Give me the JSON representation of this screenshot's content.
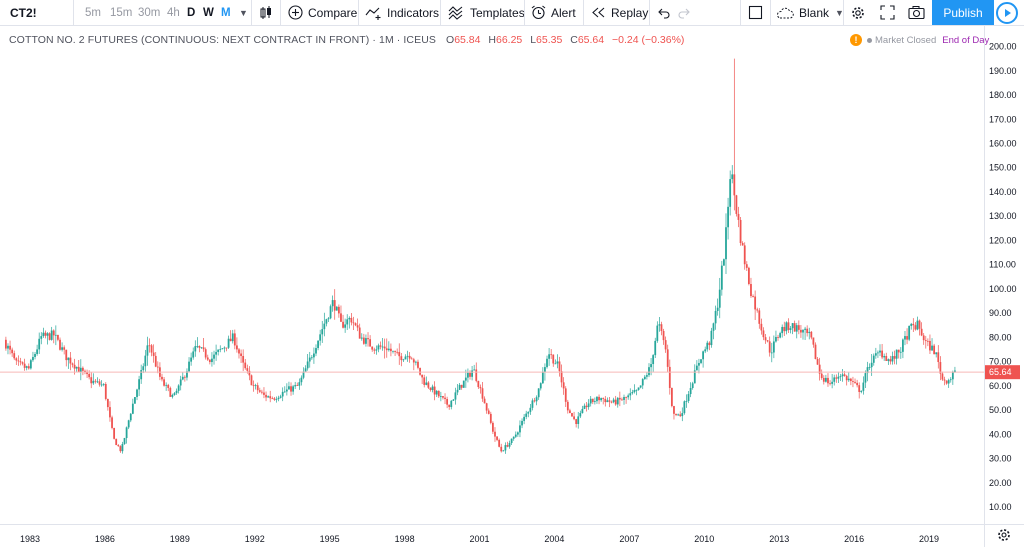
{
  "toolbar": {
    "symbol": "CT2!",
    "intervals": [
      "5m",
      "15m",
      "30m",
      "4h",
      "D",
      "W",
      "M"
    ],
    "active_intervals": [
      "D",
      "W"
    ],
    "selected_interval": "M",
    "compare_label": "Compare",
    "indicators_label": "Indicators",
    "templates_label": "Templates",
    "alert_label": "Alert",
    "replay_label": "Replay",
    "layout_label": "Blank",
    "publish_label": "Publish"
  },
  "legend": {
    "title": "COTTON NO. 2 FUTURES (CONTINUOUS: NEXT CONTRACT IN FRONT) · 1M · ICEUS",
    "open_label": "O",
    "open": "65.84",
    "high_label": "H",
    "high": "66.25",
    "low_label": "L",
    "low": "65.35",
    "close_label": "C",
    "close": "65.64",
    "change": "−0.24 (−0.36%)",
    "status_badge": "!",
    "market_status": "Market Closed",
    "session": "End of Day"
  },
  "colors": {
    "up": "#26a69a",
    "down": "#ef5350",
    "accent": "#2196f3",
    "last_price_line": "#f6b9b7",
    "grid": "#ffffff"
  },
  "chart_data": {
    "type": "candlestick",
    "title": "",
    "xlabel": "",
    "ylabel": "",
    "x_ticks": [
      "1983",
      "1986",
      "1989",
      "1992",
      "1995",
      "1998",
      "2001",
      "2004",
      "2007",
      "2010",
      "2013",
      "2016",
      "2019"
    ],
    "y_ticks": [
      "10.00",
      "20.00",
      "30.00",
      "40.00",
      "50.00",
      "60.00",
      "70.00",
      "80.00",
      "90.00",
      "100.00",
      "110.00",
      "120.00",
      "130.00",
      "140.00",
      "150.00",
      "160.00",
      "170.00",
      "180.00",
      "190.00",
      "200.00"
    ],
    "ylim": [
      3,
      206
    ],
    "xlim": [
      1981.8,
      2021.2
    ],
    "last_price": "65.64",
    "anchors": [
      [
        1982.0,
        79
      ],
      [
        1982.5,
        69
      ],
      [
        1983.0,
        67
      ],
      [
        1983.5,
        80
      ],
      [
        1984.0,
        81
      ],
      [
        1984.5,
        72
      ],
      [
        1985.0,
        67
      ],
      [
        1985.5,
        62
      ],
      [
        1986.0,
        60
      ],
      [
        1986.4,
        38
      ],
      [
        1986.7,
        33
      ],
      [
        1987.1,
        50
      ],
      [
        1987.5,
        65
      ],
      [
        1987.8,
        78
      ],
      [
        1988.3,
        62
      ],
      [
        1988.8,
        55
      ],
      [
        1989.3,
        66
      ],
      [
        1989.7,
        76
      ],
      [
        1990.3,
        71
      ],
      [
        1990.7,
        75
      ],
      [
        1991.2,
        80
      ],
      [
        1991.6,
        68
      ],
      [
        1992.0,
        60
      ],
      [
        1992.4,
        56
      ],
      [
        1992.8,
        55
      ],
      [
        1993.3,
        58
      ],
      [
        1993.8,
        60
      ],
      [
        1994.3,
        72
      ],
      [
        1994.8,
        85
      ],
      [
        1995.2,
        95
      ],
      [
        1995.5,
        85
      ],
      [
        1995.9,
        88
      ],
      [
        1996.3,
        80
      ],
      [
        1996.8,
        76
      ],
      [
        1997.3,
        76
      ],
      [
        1997.8,
        72
      ],
      [
        1998.3,
        73
      ],
      [
        1998.8,
        62
      ],
      [
        1999.3,
        57
      ],
      [
        1999.8,
        52
      ],
      [
        2000.3,
        60
      ],
      [
        2000.8,
        67
      ],
      [
        2001.2,
        55
      ],
      [
        2001.6,
        41
      ],
      [
        2001.9,
        33
      ],
      [
        2002.4,
        38
      ],
      [
        2002.9,
        48
      ],
      [
        2003.4,
        58
      ],
      [
        2003.8,
        74
      ],
      [
        2004.2,
        68
      ],
      [
        2004.6,
        50
      ],
      [
        2004.9,
        45
      ],
      [
        2005.4,
        53
      ],
      [
        2005.9,
        55
      ],
      [
        2006.4,
        53
      ],
      [
        2006.9,
        55
      ],
      [
        2007.4,
        58
      ],
      [
        2007.9,
        68
      ],
      [
        2008.2,
        86
      ],
      [
        2008.5,
        75
      ],
      [
        2008.8,
        48
      ],
      [
        2009.1,
        48
      ],
      [
        2009.5,
        60
      ],
      [
        2009.9,
        72
      ],
      [
        2010.3,
        79
      ],
      [
        2010.6,
        95
      ],
      [
        2010.9,
        120
      ],
      [
        2011.1,
        150
      ],
      [
        2011.3,
        135
      ],
      [
        2011.6,
        115
      ],
      [
        2011.9,
        100
      ],
      [
        2012.3,
        85
      ],
      [
        2012.7,
        74
      ],
      [
        2013.1,
        83
      ],
      [
        2013.5,
        85
      ],
      [
        2013.9,
        83
      ],
      [
        2014.3,
        80
      ],
      [
        2014.7,
        64
      ],
      [
        2015.1,
        61
      ],
      [
        2015.5,
        65
      ],
      [
        2015.9,
        62
      ],
      [
        2016.3,
        58
      ],
      [
        2016.7,
        70
      ],
      [
        2017.1,
        74
      ],
      [
        2017.5,
        70
      ],
      [
        2017.9,
        75
      ],
      [
        2018.3,
        84
      ],
      [
        2018.6,
        85
      ],
      [
        2018.9,
        78
      ],
      [
        2019.3,
        74
      ],
      [
        2019.6,
        62
      ],
      [
        2019.9,
        63
      ],
      [
        2020.0,
        65.64
      ]
    ]
  }
}
